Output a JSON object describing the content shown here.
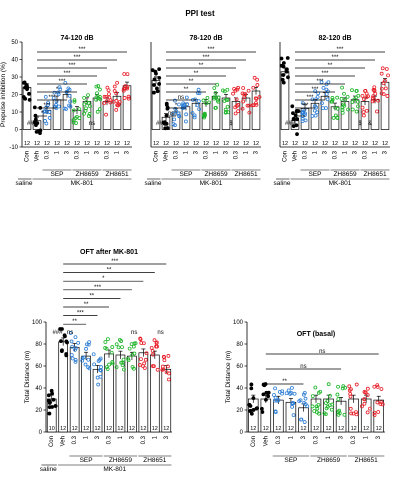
{
  "figure_title": "PPI test",
  "colors": {
    "saline": "#000000",
    "veh": "#000000",
    "sep": "#2f7fd6",
    "zh8659": "#1fb52a",
    "zh8651": "#e8202a"
  },
  "groups": {
    "saline": "saline",
    "mk801": "MK-801",
    "sep": "SEP",
    "zh8659": "ZH8659",
    "zh8651": "ZH8651"
  },
  "chart_data": [
    {
      "type": "bar",
      "id": "ppi74",
      "title": "74-120 dB",
      "ylabel": "Prepulse inhibition (%)",
      "ylim": [
        -10,
        50
      ],
      "yticks": [
        -10,
        0,
        10,
        20,
        30,
        40,
        50
      ],
      "categories": [
        "Con",
        "Veh",
        "0.3",
        "1",
        "3",
        "0.3",
        "1",
        "3",
        "0.3",
        "1",
        "3"
      ],
      "values": [
        24,
        5,
        11,
        17,
        20,
        11,
        16,
        18,
        16,
        19,
        25
      ],
      "n": [
        "12",
        "12",
        "12",
        "12",
        "12",
        "12",
        "12",
        "12",
        "12",
        "12",
        "12"
      ],
      "sig_lines": [
        {
          "from": 1,
          "to": 10,
          "label": "***"
        },
        {
          "from": 1,
          "to": 9,
          "label": "***"
        },
        {
          "from": 1,
          "to": 8,
          "label": "***"
        },
        {
          "from": 1,
          "to": 7,
          "label": "***"
        },
        {
          "from": 1,
          "to": 6,
          "label": "***"
        },
        {
          "from": 1,
          "to": 5,
          "label": "*"
        },
        {
          "from": 1,
          "to": 4,
          "label": "***"
        },
        {
          "from": 1,
          "to": 3,
          "label": "***"
        },
        {
          "from": 1,
          "to": 2,
          "label": "*"
        }
      ],
      "extra_labels": [
        {
          "label": "###",
          "at": 0.5
        },
        {
          "label": "ns",
          "at": 6.5
        }
      ]
    },
    {
      "type": "bar",
      "id": "ppi78",
      "title": "78-120 dB",
      "ylim": [
        -10,
        50
      ],
      "categories": [
        "Con",
        "Veh",
        "0.3",
        "1",
        "3",
        "0.3",
        "1",
        "3",
        "0.3",
        "1",
        "3"
      ],
      "values": [
        28,
        7,
        10,
        13,
        15,
        15,
        19,
        18,
        16,
        18,
        22
      ],
      "n": [
        "12",
        "12",
        "12",
        "12",
        "12",
        "12",
        "12",
        "12",
        "12",
        "12",
        "12"
      ],
      "sig_lines": [
        {
          "from": 1,
          "to": 10,
          "label": "***"
        },
        {
          "from": 1,
          "to": 9,
          "label": "***"
        },
        {
          "from": 1,
          "to": 8,
          "label": "**"
        },
        {
          "from": 1,
          "to": 7,
          "label": "**"
        },
        {
          "from": 1,
          "to": 6,
          "label": "**"
        },
        {
          "from": 1,
          "to": 5,
          "label": "**"
        },
        {
          "from": 1,
          "to": 4,
          "label": "ns"
        },
        {
          "from": 1,
          "to": 3,
          "label": "*"
        },
        {
          "from": 1,
          "to": 2,
          "label": "ns"
        }
      ],
      "extra_labels": [
        {
          "label": "###",
          "at": 0.5
        },
        {
          "label": "$",
          "at": 7.5
        }
      ]
    },
    {
      "type": "bar",
      "id": "ppi82",
      "title": "82-120 dB",
      "ylim": [
        -10,
        50
      ],
      "categories": [
        "Con",
        "Veh",
        "0.3",
        "1",
        "3",
        "0.3",
        "1",
        "3",
        "0.3",
        "1",
        "3"
      ],
      "values": [
        33,
        5,
        12,
        15,
        19,
        13,
        16,
        17,
        16,
        17,
        27
      ],
      "n": [
        "12",
        "12",
        "12",
        "12",
        "12",
        "12",
        "12",
        "12",
        "12",
        "12",
        "12"
      ],
      "sig_lines": [
        {
          "from": 1,
          "to": 10,
          "label": "***"
        },
        {
          "from": 1,
          "to": 9,
          "label": "***"
        },
        {
          "from": 1,
          "to": 8,
          "label": "**"
        },
        {
          "from": 1,
          "to": 7,
          "label": "***"
        },
        {
          "from": 1,
          "to": 6,
          "label": "***"
        },
        {
          "from": 1,
          "to": 5,
          "label": "***"
        },
        {
          "from": 1,
          "to": 4,
          "label": "***"
        },
        {
          "from": 1,
          "to": 3,
          "label": "***"
        },
        {
          "from": 1,
          "to": 2,
          "label": "*"
        }
      ],
      "extra_labels": [
        {
          "label": "###",
          "at": 0.5
        },
        {
          "label": "$",
          "at": 7.5
        },
        {
          "label": "&",
          "at": 8.5
        }
      ]
    },
    {
      "type": "bar",
      "id": "oft_mk801",
      "title": "OFT after MK-801",
      "ylabel": "Total Distance (m)",
      "ylim": [
        0,
        100
      ],
      "yticks": [
        0,
        20,
        40,
        60,
        80,
        100
      ],
      "categories": [
        "Con",
        "Veh",
        "0.3",
        "1",
        "3",
        "0.3",
        "1",
        "3",
        "0.3",
        "1",
        "3"
      ],
      "values": [
        30,
        82,
        77,
        69,
        57,
        71,
        70,
        69,
        72,
        70,
        57
      ],
      "n": [
        "10",
        "12",
        "12",
        "12",
        "12",
        "12",
        "12",
        "12",
        "12",
        "12",
        "12"
      ],
      "sig_lines": [
        {
          "from": 1,
          "to": 10,
          "label": "***"
        },
        {
          "from": 1,
          "to": 9,
          "label": "**"
        },
        {
          "from": 1,
          "to": 8,
          "label": "*"
        },
        {
          "from": 1,
          "to": 7,
          "label": "***"
        },
        {
          "from": 1,
          "to": 6,
          "label": "**"
        },
        {
          "from": 1,
          "to": 5,
          "label": "**"
        },
        {
          "from": 1,
          "to": 4,
          "label": "***"
        },
        {
          "from": 1,
          "to": 3,
          "label": "**"
        }
      ],
      "extra_labels": [
        {
          "label": "###",
          "at": 0.5
        },
        {
          "label": "ns",
          "at": 1.6
        },
        {
          "label": "ns",
          "at": 7.2
        },
        {
          "label": "ns",
          "at": 9.5
        }
      ]
    },
    {
      "type": "bar",
      "id": "oft_basal",
      "title": "OFT (basal)",
      "ylabel": "Total Distance (m)",
      "ylim": [
        0,
        100
      ],
      "yticks": [
        0,
        20,
        40,
        60,
        80,
        100
      ],
      "categories": [
        "Con",
        "Veh",
        "0.3",
        "1",
        "3",
        "0.3",
        "1",
        "3",
        "0.3",
        "1",
        "3"
      ],
      "values": [
        30,
        30,
        29,
        27,
        22,
        30,
        30,
        28,
        30,
        30,
        29
      ],
      "n": [
        "12",
        "12",
        "12",
        "12",
        "12",
        "12",
        "12",
        "12",
        "12",
        "12",
        "12"
      ],
      "sig_lines": [
        {
          "from": 1,
          "to": 10,
          "label": "ns"
        },
        {
          "from": 1,
          "to": 7,
          "label": "ns"
        },
        {
          "from": 1,
          "to": 4,
          "label": "**"
        }
      ],
      "extra_labels": []
    }
  ]
}
